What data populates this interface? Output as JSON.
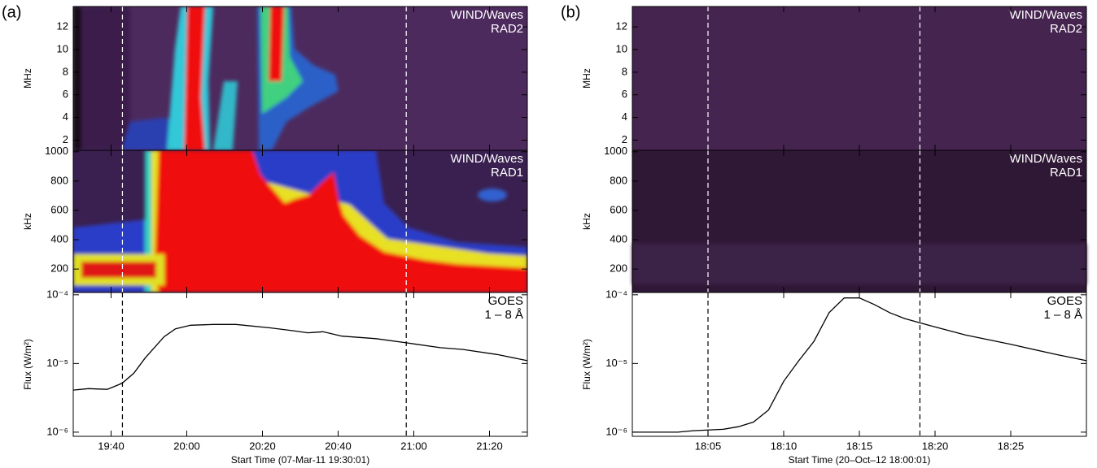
{
  "chart_data": [
    {
      "type": "stacked",
      "panel_label": "(a)",
      "xlabel": "Start Time (07-Mar-11 19:30:01)",
      "xlim": [
        "19:30",
        "21:30"
      ],
      "xticks": [
        "19:40",
        "20:00",
        "20:20",
        "20:40",
        "21:00",
        "21:20"
      ],
      "vlines": [
        "19:43",
        "20:58"
      ],
      "subplots": [
        {
          "type": "spectrogram",
          "ylabel": "MHz",
          "annotation": [
            "WIND/Waves",
            "RAD2"
          ],
          "ylim": [
            1.1,
            13.8
          ],
          "yticks": [
            2,
            4,
            6,
            8,
            10,
            12
          ]
        },
        {
          "type": "spectrogram",
          "ylabel": "kHz",
          "annotation": [
            "WIND/Waves",
            "RAD1"
          ],
          "ylim": [
            40,
            1010
          ],
          "yticks": [
            200,
            400,
            600,
            800,
            1000
          ]
        },
        {
          "type": "line",
          "ylabel": "Flux (W/m²)",
          "annotation": [
            "GOES",
            "1 – 8 Å"
          ],
          "log_scale": true,
          "color": "#000000",
          "ylim": [
            8.7e-07,
            0.000108
          ],
          "yticks": [
            {
              "value": 1e-06,
              "label": "10⁻⁶"
            },
            {
              "value": 1e-05,
              "label": "10⁻⁵"
            },
            {
              "value": 0.0001,
              "label": "10⁻⁴"
            }
          ],
          "x": [
            "19:30",
            "19:34",
            "19:39",
            "19:42",
            "19:43",
            "19:46",
            "19:49",
            "19:54",
            "19:57",
            "20:01",
            "20:07",
            "20:13",
            "20:22",
            "20:28",
            "20:32",
            "20:36",
            "20:41",
            "20:50",
            "20:58",
            "21:07",
            "21:13",
            "21:22",
            "21:30"
          ],
          "values": [
            4.1e-06,
            4.3e-06,
            4.2e-06,
            4.9e-06,
            5.2e-06,
            7.2e-06,
            1.2e-05,
            2.45e-05,
            3.2e-05,
            3.6e-05,
            3.7e-05,
            3.7e-05,
            3.3e-05,
            3e-05,
            2.8e-05,
            2.9e-05,
            2.5e-05,
            2.3e-05,
            2e-05,
            1.7e-05,
            1.6e-05,
            1.35e-05,
            1.1e-05
          ]
        }
      ]
    },
    {
      "type": "stacked",
      "panel_label": "(b)",
      "xlabel": "Start Time (20–Oct–12 18:00:01)",
      "xlim": [
        "18:00",
        "18:30"
      ],
      "xticks": [
        "18:05",
        "18:10",
        "18:15",
        "18:20",
        "18:25"
      ],
      "vlines": [
        "18:05",
        "18:19"
      ],
      "subplots": [
        {
          "type": "spectrogram",
          "ylabel": "MHz",
          "annotation": [
            "WIND/Waves",
            "RAD2"
          ],
          "ylim": [
            1.1,
            13.8
          ],
          "yticks": [
            2,
            4,
            6,
            8,
            10,
            12
          ]
        },
        {
          "type": "spectrogram",
          "ylabel": "kHz",
          "annotation": [
            "WIND/Waves",
            "RAD1"
          ],
          "ylim": [
            40,
            1010
          ],
          "yticks": [
            200,
            400,
            600,
            800,
            1000
          ]
        },
        {
          "type": "line",
          "ylabel": "Flux (W/m²)",
          "annotation": [
            "GOES",
            "1 – 8 Å"
          ],
          "log_scale": true,
          "color": "#000000",
          "ylim": [
            8.7e-07,
            0.000108
          ],
          "yticks": [
            {
              "value": 1e-06,
              "label": "10⁻⁶"
            },
            {
              "value": 1e-05,
              "label": "10⁻⁵"
            },
            {
              "value": 0.0001,
              "label": "10⁻⁴"
            }
          ],
          "x": [
            "18:00",
            "18:03",
            "18:04",
            "18:06",
            "18:07",
            "18:08",
            "18:09",
            "18:10",
            "18:11",
            "18:12",
            "18:13",
            "18:14",
            "18:15",
            "18:16",
            "18:17",
            "18:18",
            "18:20",
            "18:22",
            "18:25",
            "18:28",
            "18:30"
          ],
          "values": [
            1e-06,
            1e-06,
            1.05e-06,
            1.1e-06,
            1.2e-06,
            1.4e-06,
            2.1e-06,
            5.5e-06,
            1.1e-05,
            2.1e-05,
            5.5e-05,
            9e-05,
            9e-05,
            7.2e-05,
            5.5e-05,
            4.5e-05,
            3.4e-05,
            2.6e-05,
            1.9e-05,
            1.35e-05,
            1.1e-05
          ]
        }
      ]
    }
  ]
}
